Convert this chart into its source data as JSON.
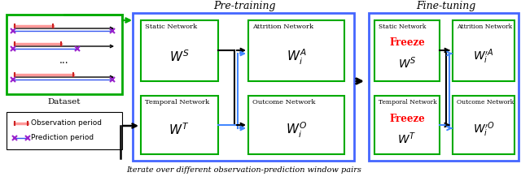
{
  "fig_width": 6.4,
  "fig_height": 2.23,
  "dpi": 100,
  "bg_color": "#ffffff",
  "title_pretraining": "Pre-training",
  "title_finetuning": "Fine-tuning",
  "bottom_text": "Iterate over different observation-prediction window pairs",
  "dataset_label": "Dataset",
  "legend_obs": "Observation period",
  "legend_pred": "Prediction period",
  "green_border": "#00aa00",
  "blue_border": "#4466ff",
  "blue_arrow": "#4488ff",
  "red_freeze": "#ff0000"
}
